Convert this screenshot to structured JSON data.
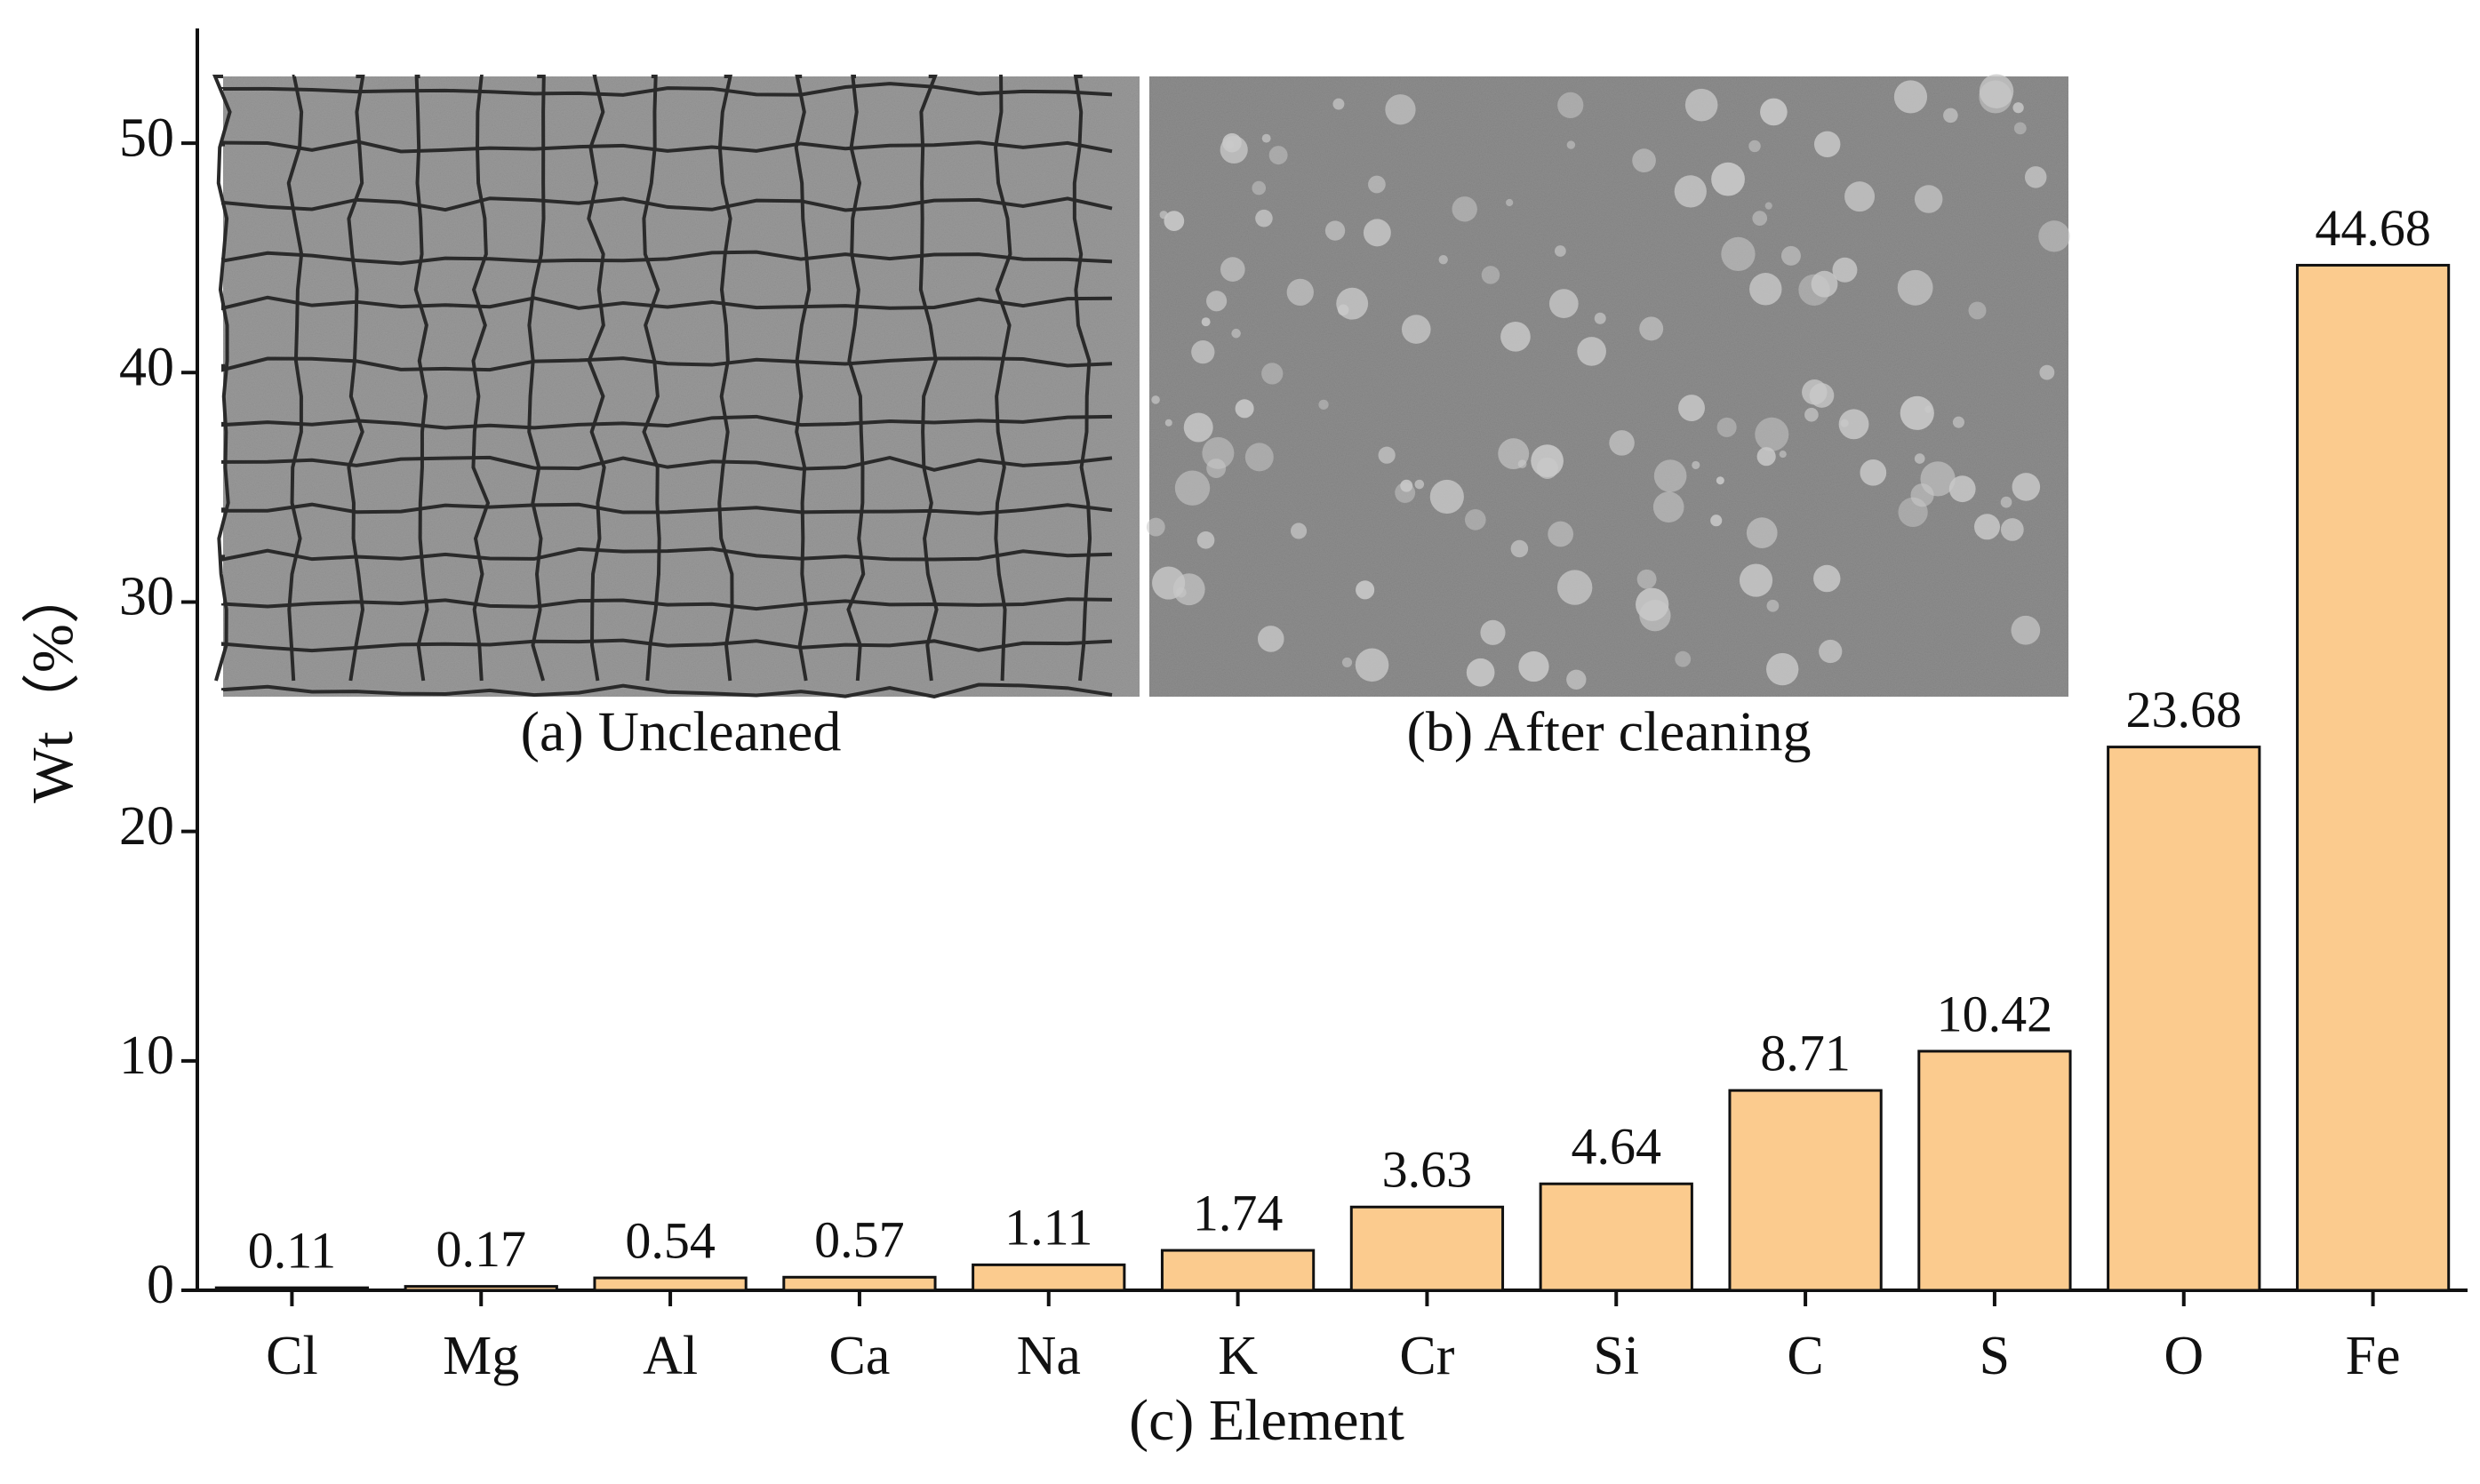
{
  "chart_data": {
    "type": "bar",
    "x_label": "(c) Element",
    "y_label": "Wt（%）",
    "categories": [
      "Cl",
      "Mg",
      "Al",
      "Ca",
      "Na",
      "K",
      "Cr",
      "Si",
      "C",
      "S",
      "O",
      "Fe"
    ],
    "values": [
      0.11,
      0.17,
      0.54,
      0.57,
      1.11,
      1.74,
      3.63,
      4.64,
      8.71,
      10.42,
      23.68,
      44.68
    ],
    "color": "#fbcb8e",
    "ylim": [
      0,
      55
    ],
    "yticks": [
      0,
      10,
      20,
      30,
      40,
      50
    ],
    "grid": false,
    "insets": [
      "(a) Uncleaned",
      "(b) After cleaning"
    ]
  }
}
